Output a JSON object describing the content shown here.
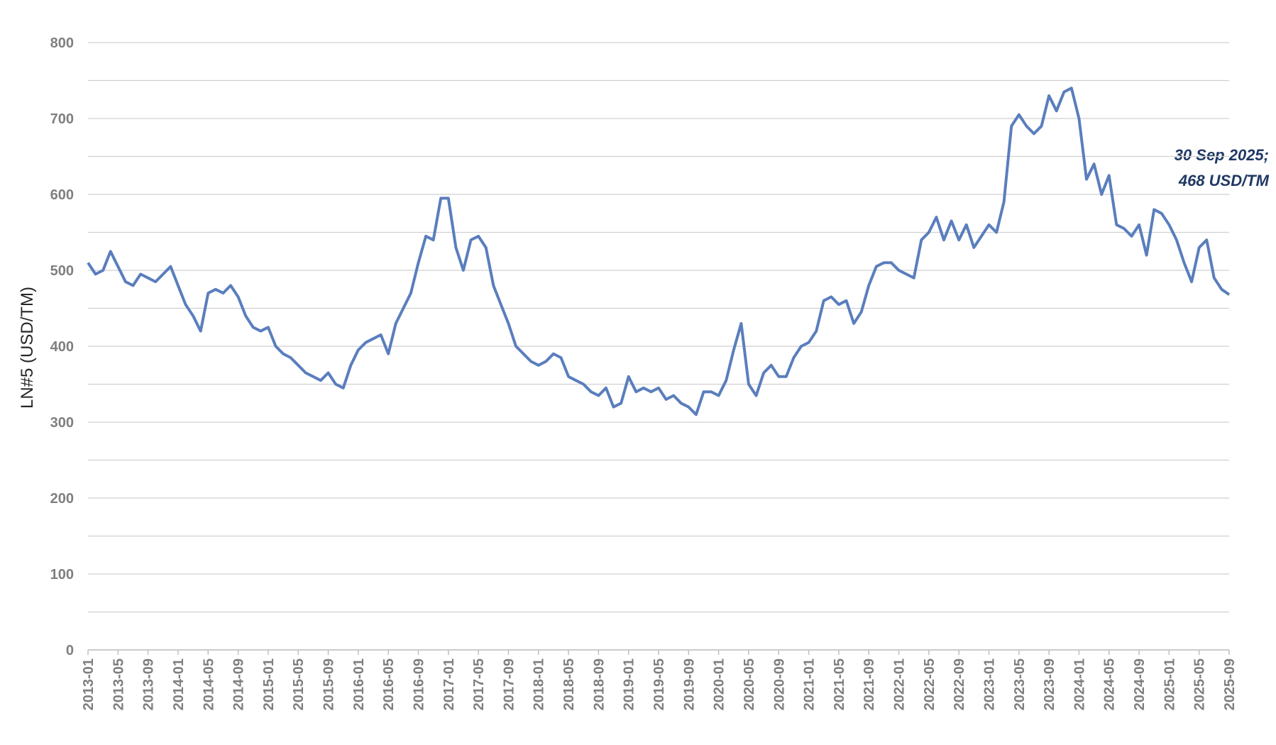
{
  "chart_data": {
    "type": "line",
    "y_label": "LN#5 (USD/TM)",
    "annotation": [
      "30 Sep 2025;",
      "468 USD/TM"
    ],
    "color": "#5a7ebd",
    "grid": true,
    "ylim": [
      0,
      800
    ],
    "yticks": [
      0,
      100,
      200,
      300,
      400,
      500,
      600,
      700,
      800
    ],
    "y_minor_ticks": [
      50,
      150,
      250,
      350,
      450,
      550,
      650,
      750
    ],
    "categories": [
      "2013-01",
      null,
      null,
      null,
      "2013-05",
      null,
      null,
      null,
      "2013-09",
      null,
      null,
      null,
      "2014-01",
      null,
      null,
      null,
      "2014-05",
      null,
      null,
      null,
      "2014-09",
      null,
      null,
      null,
      "2015-01",
      null,
      null,
      null,
      "2015-05",
      null,
      null,
      null,
      "2015-09",
      null,
      null,
      null,
      "2016-01",
      null,
      null,
      null,
      "2016-05",
      null,
      null,
      null,
      "2016-09",
      null,
      null,
      null,
      "2017-01",
      null,
      null,
      null,
      "2017-05",
      null,
      null,
      null,
      "2017-09",
      null,
      null,
      null,
      "2018-01",
      null,
      null,
      null,
      "2018-05",
      null,
      null,
      null,
      "2018-09",
      null,
      null,
      null,
      "2019-01",
      null,
      null,
      null,
      "2019-05",
      null,
      null,
      null,
      "2019-09",
      null,
      null,
      null,
      "2020-01",
      null,
      null,
      null,
      "2020-05",
      null,
      null,
      null,
      "2020-09",
      null,
      null,
      null,
      "2021-01",
      null,
      null,
      null,
      "2021-05",
      null,
      null,
      null,
      "2021-09",
      null,
      null,
      null,
      "2022-01",
      null,
      null,
      null,
      "2022-05",
      null,
      null,
      null,
      "2022-09",
      null,
      null,
      null,
      "2023-01",
      null,
      null,
      null,
      "2023-05",
      null,
      null,
      null,
      "2023-09",
      null,
      null,
      null,
      "2024-01",
      null,
      null,
      null,
      "2024-05",
      null,
      null,
      null,
      "2024-09",
      null,
      null,
      null,
      "2025-01",
      null,
      null,
      null,
      "2025-05",
      null,
      null,
      null,
      "2025-09"
    ],
    "values": [
      510,
      495,
      500,
      525,
      505,
      485,
      480,
      495,
      490,
      485,
      495,
      505,
      480,
      455,
      440,
      420,
      470,
      475,
      470,
      480,
      465,
      440,
      425,
      420,
      425,
      400,
      390,
      385,
      375,
      365,
      360,
      355,
      365,
      350,
      345,
      375,
      395,
      405,
      410,
      415,
      390,
      430,
      450,
      470,
      510,
      545,
      540,
      595,
      595,
      530,
      500,
      540,
      545,
      530,
      480,
      455,
      430,
      400,
      390,
      380,
      375,
      380,
      390,
      385,
      360,
      355,
      350,
      340,
      335,
      345,
      320,
      325,
      360,
      340,
      345,
      340,
      345,
      330,
      335,
      325,
      320,
      310,
      340,
      340,
      335,
      355,
      395,
      430,
      350,
      335,
      365,
      375,
      360,
      360,
      385,
      400,
      405,
      420,
      460,
      465,
      455,
      460,
      430,
      445,
      480,
      505,
      510,
      510,
      500,
      495,
      490,
      540,
      550,
      570,
      540,
      565,
      540,
      560,
      530,
      545,
      560,
      550,
      590,
      690,
      705,
      690,
      680,
      690,
      730,
      710,
      735,
      740,
      700,
      620,
      640,
      600,
      625,
      560,
      555,
      545,
      560,
      520,
      580,
      575,
      560,
      540,
      510,
      485,
      530,
      540,
      490,
      475,
      468
    ]
  }
}
